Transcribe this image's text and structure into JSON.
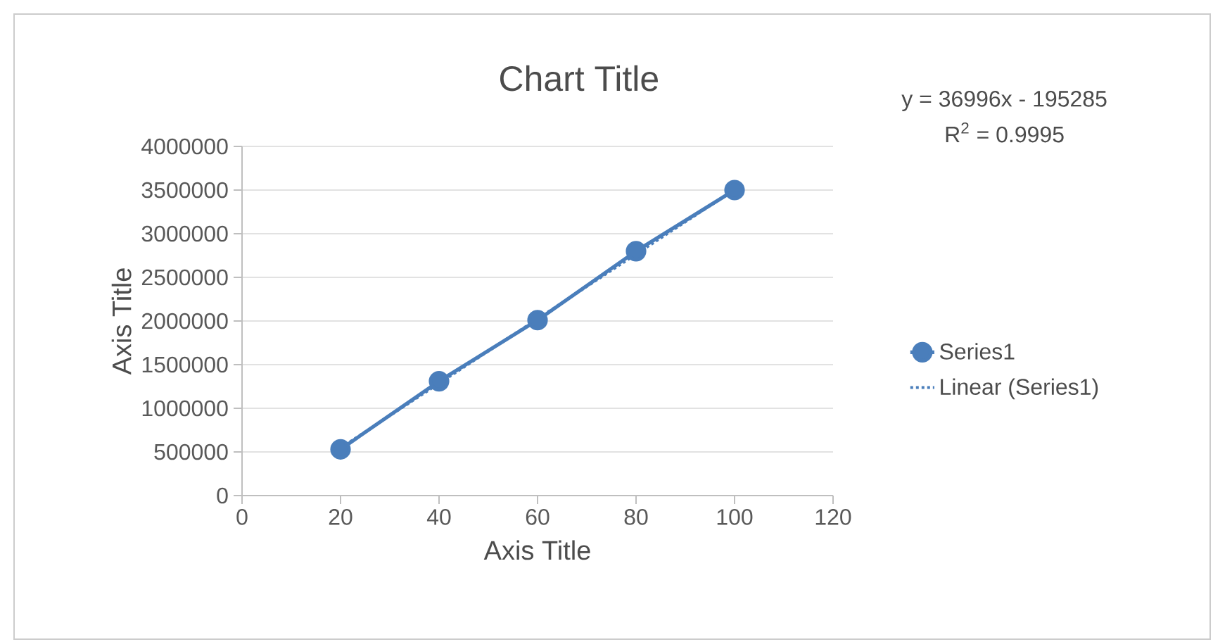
{
  "chart_data": {
    "type": "line",
    "title": "Chart Title",
    "xlabel": "Axis Title",
    "ylabel": "Axis Title",
    "xlim": [
      0,
      120
    ],
    "xticks": [
      0,
      20,
      40,
      60,
      80,
      100,
      120
    ],
    "ylim": [
      0,
      4000000
    ],
    "yticks": [
      0,
      500000,
      1000000,
      1500000,
      2000000,
      2500000,
      3000000,
      3500000,
      4000000
    ],
    "grid": "y",
    "legend": "right",
    "annotations": [
      "y = 36996x - 195285",
      "R$^{2}$ = 0.9995"
    ],
    "series": [
      {
        "name": "Series1",
        "color": "#4a7ebb",
        "x": [
          20,
          40,
          60,
          80,
          100
        ],
        "values": [
          530000,
          1310000,
          2010000,
          2800000,
          3500000
        ],
        "marker": "circle",
        "line_style": "solid"
      },
      {
        "name": "Linear (Series1)",
        "color": "#4a7ebb",
        "x": [
          20,
          100
        ],
        "values": [
          545000,
          3505000
        ],
        "marker": "none",
        "line_style": "dotted"
      }
    ]
  }
}
